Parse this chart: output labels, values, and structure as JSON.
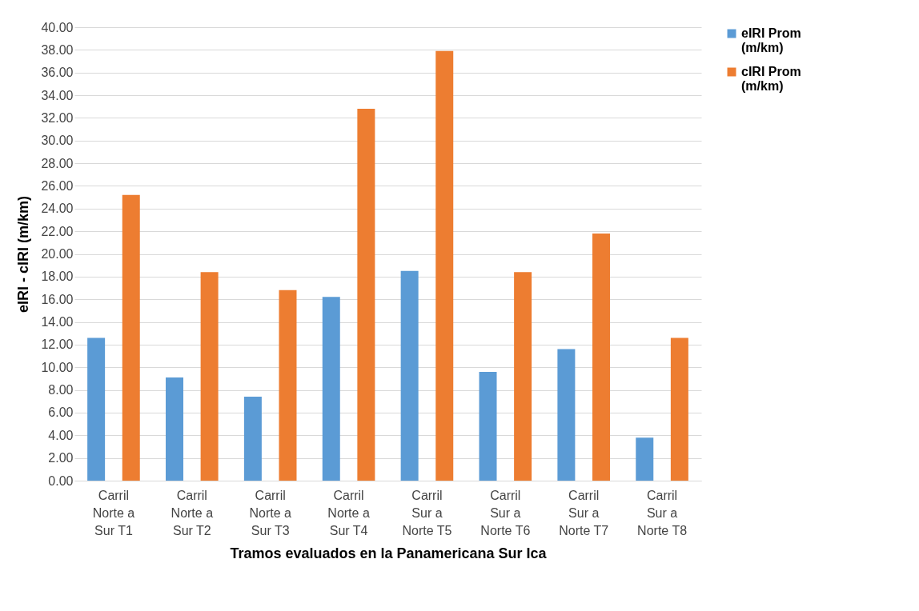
{
  "chart_data": {
    "type": "bar",
    "xlabel": "Tramos evaluados en la Panamericana Sur Ica",
    "ylabel": "eIRI - cIRI (m/km)",
    "categories": [
      "Carril Norte a Sur T1",
      "Carril Norte a Sur T2",
      "Carril Norte a Sur T3",
      "Carril Norte a Sur T4",
      "Carril Sur a Norte T5",
      "Carril Sur a Norte T6",
      "Carril Sur a Norte T7",
      "Carril Sur a Norte T8"
    ],
    "series": [
      {
        "name": "eIRI Prom (m/km)",
        "color": "#5b9bd5",
        "values": [
          12.6,
          9.1,
          7.4,
          16.2,
          18.5,
          9.6,
          11.6,
          3.8
        ]
      },
      {
        "name": "cIRI Prom (m/km)",
        "color": "#ed7d31",
        "values": [
          25.2,
          18.4,
          16.8,
          32.8,
          37.9,
          18.4,
          21.8,
          12.6
        ]
      }
    ],
    "ylim": [
      0,
      40
    ],
    "yticks": [
      {
        "value": 0,
        "label": "0.00"
      },
      {
        "value": 2,
        "label": "2.00"
      },
      {
        "value": 4,
        "label": "4.00"
      },
      {
        "value": 6,
        "label": "6.00"
      },
      {
        "value": 8,
        "label": "8.00"
      },
      {
        "value": 10,
        "label": "10.00"
      },
      {
        "value": 12,
        "label": "12.00"
      },
      {
        "value": 14,
        "label": "14.00"
      },
      {
        "value": 16,
        "label": "16.00"
      },
      {
        "value": 18,
        "label": "18.00"
      },
      {
        "value": 20,
        "label": "20.00"
      },
      {
        "value": 22,
        "label": "22.00"
      },
      {
        "value": 24,
        "label": "24.00"
      },
      {
        "value": 26,
        "label": "26.00"
      },
      {
        "value": 28,
        "label": "28.00"
      },
      {
        "value": 30,
        "label": "30.00"
      },
      {
        "value": 32,
        "label": "32.00"
      },
      {
        "value": 34,
        "label": "34.00"
      },
      {
        "value": 36,
        "label": "36.00"
      },
      {
        "value": 38,
        "label": "38.00"
      },
      {
        "value": 40,
        "label": "40.00"
      }
    ],
    "grid": "y",
    "legend": "right"
  }
}
